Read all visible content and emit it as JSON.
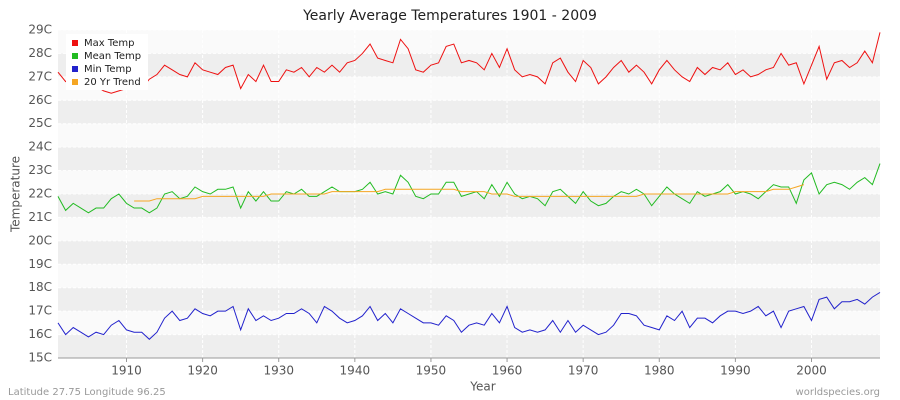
{
  "chart_data": {
    "type": "line",
    "title": "Yearly Average Temperatures 1901 - 2009",
    "x_label": "Year",
    "y_label": "Temperature",
    "footer_left": "Latitude 27.75 Longitude 96.25",
    "footer_right": "worldspecies.org",
    "x": [
      1901,
      1902,
      1903,
      1904,
      1905,
      1906,
      1907,
      1908,
      1909,
      1910,
      1911,
      1912,
      1913,
      1914,
      1915,
      1916,
      1917,
      1918,
      1919,
      1920,
      1921,
      1922,
      1923,
      1924,
      1925,
      1926,
      1927,
      1928,
      1929,
      1930,
      1931,
      1932,
      1933,
      1934,
      1935,
      1936,
      1937,
      1938,
      1939,
      1940,
      1941,
      1942,
      1943,
      1944,
      1945,
      1946,
      1947,
      1948,
      1949,
      1950,
      1951,
      1952,
      1953,
      1954,
      1955,
      1956,
      1957,
      1958,
      1959,
      1960,
      1961,
      1962,
      1963,
      1964,
      1965,
      1966,
      1967,
      1968,
      1969,
      1970,
      1971,
      1972,
      1973,
      1974,
      1975,
      1976,
      1977,
      1978,
      1979,
      1980,
      1981,
      1982,
      1983,
      1984,
      1985,
      1986,
      1987,
      1988,
      1989,
      1990,
      1991,
      1992,
      1993,
      1994,
      1995,
      1996,
      1997,
      1998,
      1999,
      2000,
      2001,
      2002,
      2003,
      2004,
      2005,
      2006,
      2007,
      2008,
      2009
    ],
    "xlim": [
      1901,
      2009
    ],
    "xticks": [
      1910,
      1920,
      1930,
      1940,
      1950,
      1960,
      1970,
      1980,
      1990,
      2000
    ],
    "ylim": [
      15,
      29
    ],
    "yticks": [
      {
        "value": 15,
        "label": "15C"
      },
      {
        "value": 16,
        "label": "16C"
      },
      {
        "value": 17,
        "label": "17C"
      },
      {
        "value": 18,
        "label": "18C"
      },
      {
        "value": 19,
        "label": "19C"
      },
      {
        "value": 20,
        "label": "20C"
      },
      {
        "value": 21,
        "label": "21C"
      },
      {
        "value": 22,
        "label": "22C"
      },
      {
        "value": 23,
        "label": "23C"
      },
      {
        "value": 24,
        "label": "24C"
      },
      {
        "value": 25,
        "label": "25C"
      },
      {
        "value": 26,
        "label": "26C"
      },
      {
        "value": 27,
        "label": "27C"
      },
      {
        "value": 28,
        "label": "28C"
      },
      {
        "value": 29,
        "label": "29C"
      }
    ],
    "grid": true,
    "legend": "top-left",
    "series": [
      {
        "name": "Max Temp",
        "color": "#ee1111",
        "values": [
          27.2,
          26.8,
          27.0,
          26.7,
          26.5,
          26.6,
          26.4,
          26.3,
          26.4,
          26.5,
          26.6,
          26.5,
          26.9,
          27.1,
          27.5,
          27.3,
          27.1,
          27.0,
          27.6,
          27.3,
          27.2,
          27.1,
          27.4,
          27.5,
          26.5,
          27.1,
          26.8,
          27.5,
          26.8,
          26.8,
          27.3,
          27.2,
          27.4,
          27.0,
          27.4,
          27.2,
          27.5,
          27.2,
          27.6,
          27.7,
          28.0,
          28.4,
          27.8,
          27.7,
          27.6,
          28.6,
          28.2,
          27.3,
          27.2,
          27.5,
          27.6,
          28.3,
          28.4,
          27.6,
          27.7,
          27.6,
          27.3,
          28.0,
          27.4,
          28.2,
          27.3,
          27.0,
          27.1,
          27.0,
          26.7,
          27.6,
          27.8,
          27.2,
          26.8,
          27.7,
          27.4,
          26.7,
          27.0,
          27.4,
          27.7,
          27.2,
          27.5,
          27.2,
          26.7,
          27.3,
          27.7,
          27.3,
          27.0,
          26.8,
          27.4,
          27.1,
          27.4,
          27.3,
          27.6,
          27.1,
          27.3,
          27.0,
          27.1,
          27.3,
          27.4,
          28.0,
          27.5,
          27.6,
          26.7,
          27.5,
          28.3,
          26.9,
          27.6,
          27.7,
          27.4,
          27.6,
          28.1,
          27.6,
          28.9
        ]
      },
      {
        "name": "Mean Temp",
        "color": "#22bb22",
        "values": [
          21.9,
          21.3,
          21.6,
          21.4,
          21.2,
          21.4,
          21.4,
          21.8,
          22.0,
          21.6,
          21.4,
          21.4,
          21.2,
          21.4,
          22.0,
          22.1,
          21.8,
          21.9,
          22.3,
          22.1,
          22.0,
          22.2,
          22.2,
          22.3,
          21.4,
          22.1,
          21.7,
          22.1,
          21.7,
          21.7,
          22.1,
          22.0,
          22.2,
          21.9,
          21.9,
          22.1,
          22.3,
          22.1,
          22.1,
          22.1,
          22.2,
          22.5,
          22.0,
          22.1,
          22.0,
          22.8,
          22.5,
          21.9,
          21.8,
          22.0,
          22.0,
          22.5,
          22.5,
          21.9,
          22.0,
          22.1,
          21.8,
          22.4,
          21.9,
          22.5,
          22.0,
          21.8,
          21.9,
          21.8,
          21.5,
          22.1,
          22.2,
          21.9,
          21.6,
          22.1,
          21.7,
          21.5,
          21.6,
          21.9,
          22.1,
          22.0,
          22.2,
          22.0,
          21.5,
          21.9,
          22.3,
          22.0,
          21.8,
          21.6,
          22.1,
          21.9,
          22.0,
          22.1,
          22.4,
          22.0,
          22.1,
          22.0,
          21.8,
          22.1,
          22.4,
          22.3,
          22.3,
          21.6,
          22.6,
          22.9,
          22.0,
          22.4,
          22.5,
          22.4,
          22.2,
          22.5,
          22.7,
          22.4,
          23.3
        ]
      },
      {
        "name": "Min Temp",
        "color": "#2222cc",
        "values": [
          16.5,
          16.0,
          16.3,
          16.1,
          15.9,
          16.1,
          16.0,
          16.4,
          16.6,
          16.2,
          16.1,
          16.1,
          15.8,
          16.1,
          16.7,
          17.0,
          16.6,
          16.7,
          17.1,
          16.9,
          16.8,
          17.0,
          17.0,
          17.2,
          16.2,
          17.1,
          16.6,
          16.8,
          16.6,
          16.7,
          16.9,
          16.9,
          17.1,
          16.9,
          16.5,
          17.2,
          17.0,
          16.7,
          16.5,
          16.6,
          16.8,
          17.2,
          16.6,
          16.9,
          16.5,
          17.1,
          16.9,
          16.7,
          16.5,
          16.5,
          16.4,
          16.8,
          16.6,
          16.1,
          16.4,
          16.5,
          16.4,
          16.9,
          16.5,
          17.2,
          16.3,
          16.1,
          16.2,
          16.1,
          16.2,
          16.6,
          16.1,
          16.6,
          16.1,
          16.4,
          16.2,
          16.0,
          16.1,
          16.4,
          16.9,
          16.9,
          16.8,
          16.4,
          16.3,
          16.2,
          16.8,
          16.6,
          17.0,
          16.3,
          16.7,
          16.7,
          16.5,
          16.8,
          17.0,
          17.0,
          16.9,
          17.0,
          17.2,
          16.8,
          17.0,
          16.3,
          17.0,
          17.1,
          17.2,
          16.6,
          17.5,
          17.6,
          17.1,
          17.4,
          17.4,
          17.5,
          17.3,
          17.6,
          17.8
        ]
      },
      {
        "name": "20 Yr Trend",
        "color": "#f5a623",
        "values": [
          null,
          null,
          null,
          null,
          null,
          null,
          null,
          null,
          null,
          null,
          21.7,
          21.7,
          21.7,
          21.8,
          21.8,
          21.8,
          21.8,
          21.8,
          21.8,
          21.9,
          21.9,
          21.9,
          21.9,
          21.9,
          21.9,
          21.9,
          21.9,
          21.9,
          22.0,
          22.0,
          22.0,
          22.0,
          22.0,
          22.0,
          22.0,
          22.0,
          22.1,
          22.1,
          22.1,
          22.1,
          22.1,
          22.1,
          22.1,
          22.2,
          22.2,
          22.2,
          22.2,
          22.2,
          22.2,
          22.2,
          22.2,
          22.2,
          22.2,
          22.1,
          22.1,
          22.1,
          22.1,
          22.0,
          22.0,
          22.0,
          21.9,
          21.9,
          21.9,
          21.9,
          21.9,
          21.9,
          21.9,
          21.9,
          21.9,
          21.9,
          21.9,
          21.9,
          21.9,
          21.9,
          21.9,
          21.9,
          21.9,
          22.0,
          22.0,
          22.0,
          22.0,
          22.0,
          22.0,
          22.0,
          22.0,
          22.0,
          22.0,
          22.0,
          22.0,
          22.1,
          22.1,
          22.1,
          22.1,
          22.1,
          22.2,
          22.2,
          22.2,
          22.3,
          22.4,
          null,
          null,
          null,
          null,
          null,
          null,
          null,
          null,
          null,
          null
        ]
      }
    ]
  }
}
